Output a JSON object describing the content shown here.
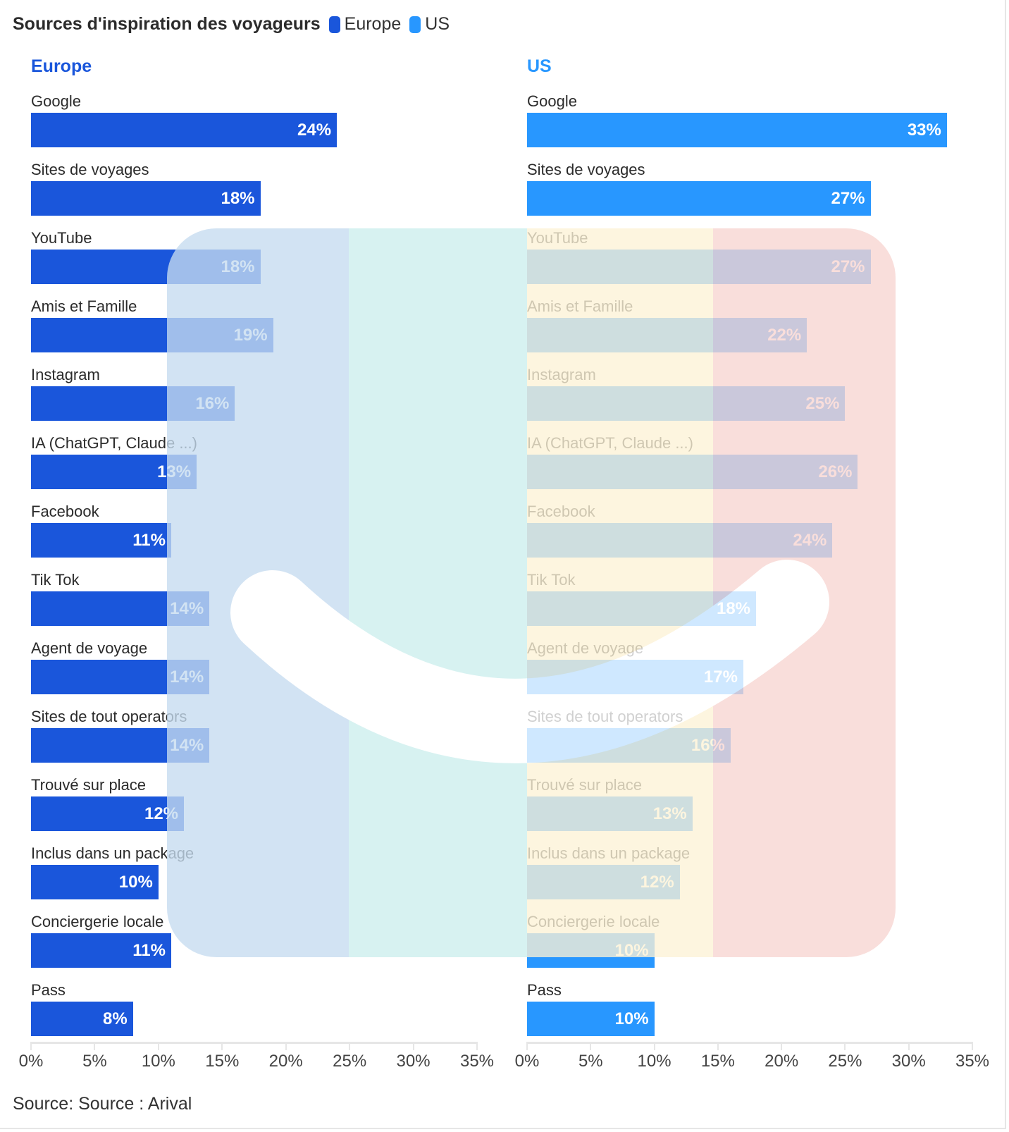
{
  "chart_data": {
    "type": "bar",
    "title": "Sources d'inspiration des voyageurs",
    "legend": [
      {
        "name": "Europe",
        "color": "#1a56db"
      },
      {
        "name": "US",
        "color": "#2897ff"
      }
    ],
    "categories": [
      "Google",
      "Sites de voyages",
      "YouTube",
      "Amis et Famille",
      "Instagram",
      "IA (ChatGPT, Claude ...)",
      "Facebook",
      "Tik Tok",
      "Agent de voyage",
      "Sites de tout operators",
      "Trouvé sur place",
      "Inclus dans un package",
      "Conciergerie locale",
      "Pass"
    ],
    "series": [
      {
        "name": "Europe",
        "color": "#1a56db",
        "values": [
          24,
          18,
          18,
          19,
          16,
          13,
          11,
          14,
          14,
          14,
          12,
          10,
          11,
          8
        ],
        "labels": [
          "24%",
          "18%",
          "18%",
          "19%",
          "16%",
          "13%",
          "11%",
          "14%",
          "14%",
          "14%",
          "12%",
          "10%",
          "11%",
          "8%"
        ]
      },
      {
        "name": "US",
        "color": "#2897ff",
        "values": [
          33,
          27,
          27,
          22,
          25,
          26,
          24,
          18,
          17,
          16,
          13,
          12,
          10,
          10
        ],
        "labels": [
          "33%",
          "27%",
          "27%",
          "22%",
          "25%",
          "26%",
          "24%",
          "18%",
          "17%",
          "16%",
          "13%",
          "12%",
          "10%",
          "10%"
        ]
      }
    ],
    "xlim": [
      0,
      35
    ],
    "xticks": [
      0,
      5,
      10,
      15,
      20,
      25,
      30,
      35
    ],
    "xtick_labels": [
      "0%",
      "5%",
      "10%",
      "15%",
      "20%",
      "25%",
      "30%",
      "35%"
    ],
    "xlabel": "",
    "ylabel": "",
    "grid": false,
    "legend_placement": "top"
  },
  "source": "Source: Source : Arival",
  "watermark_colors": [
    "#c6dcf0",
    "#ccefee",
    "#fdf3d7",
    "#f8d6d2"
  ]
}
